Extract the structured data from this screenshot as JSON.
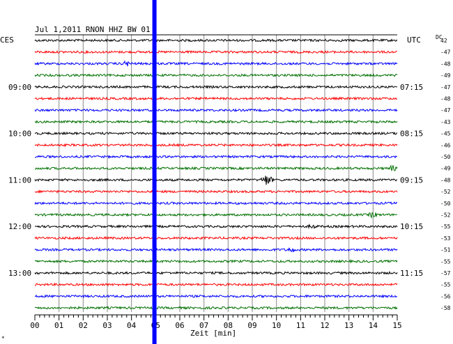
{
  "chart_data": {
    "type": "line",
    "title": "Jul 1,2011   RNON HHZ BW 01",
    "left_header": "CES",
    "right_header": "UTC",
    "dc_header": "DC",
    "xlabel": "Zeit [min]",
    "xlim": [
      0,
      15
    ],
    "x_ticks": [
      "00",
      "01",
      "02",
      "03",
      "04",
      "05",
      "06",
      "07",
      "08",
      "09",
      "10",
      "11",
      "12",
      "13",
      "14",
      "15"
    ],
    "left_time_labels": [
      {
        "row": 0,
        "text": ""
      },
      {
        "row": 4,
        "text": "09:00"
      },
      {
        "row": 8,
        "text": "10:00"
      },
      {
        "row": 12,
        "text": "11:00"
      },
      {
        "row": 16,
        "text": "12:00"
      },
      {
        "row": 20,
        "text": "13:00"
      }
    ],
    "right_time_labels": [
      {
        "row": 4,
        "text": "07:15"
      },
      {
        "row": 8,
        "text": "08:15"
      },
      {
        "row": 12,
        "text": "09:15"
      },
      {
        "row": 16,
        "text": "10:15"
      },
      {
        "row": 20,
        "text": "11:15"
      }
    ],
    "dc_values": [
      "42",
      "-47",
      "-48",
      "-49",
      "-47",
      "-48",
      "-47",
      "-43",
      "-45",
      "-46",
      "-50",
      "-49",
      "-48",
      "-52",
      "-50",
      "-52",
      "-55",
      "-53",
      "-51",
      "-55",
      "-57",
      "-55",
      "-56",
      "-58"
    ],
    "trace_colors": [
      "#000000",
      "#ff0000",
      "#0000ff",
      "#007000"
    ],
    "marker": {
      "x_min": 4.95,
      "color": "#0000ff"
    },
    "events": [
      {
        "row": 2,
        "x_min": 3.8,
        "amp": 5
      },
      {
        "row": 11,
        "x_min": 14.8,
        "amp": 5
      },
      {
        "row": 12,
        "x_min": 9.6,
        "amp": 9
      },
      {
        "row": 15,
        "x_min": 14.0,
        "amp": 5
      },
      {
        "row": 16,
        "x_min": 11.5,
        "amp": 4
      },
      {
        "row": 18,
        "x_min": 10.6,
        "amp": 5
      }
    ],
    "grid": true
  },
  "corner_mark": "∗"
}
